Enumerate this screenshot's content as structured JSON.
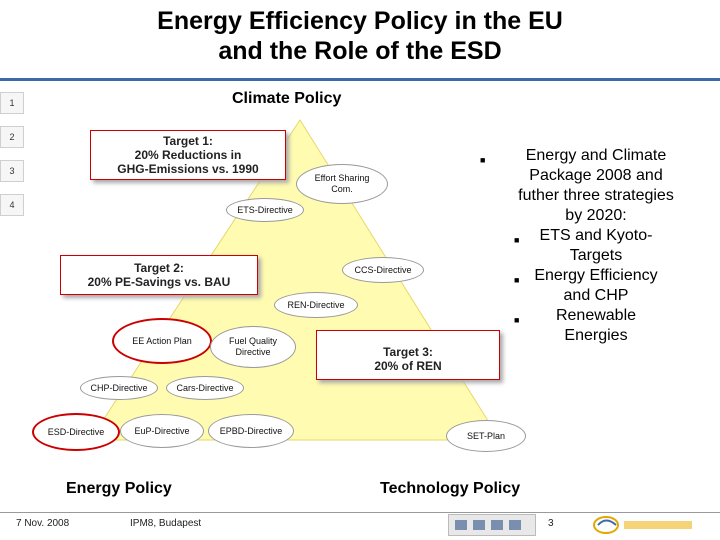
{
  "slide": {
    "title_line1": "Energy Efficiency Policy in the EU",
    "title_line2": "and the Role of the ESD",
    "side_numbers": [
      "1",
      "2",
      "3",
      "4"
    ],
    "climate_policy": "Climate Policy",
    "energy_policy": "Energy Policy",
    "technology_policy": "Technology Policy",
    "targets": {
      "t1": [
        "Target 1:",
        "20% Reductions in",
        "GHG-Emissions vs. 1990"
      ],
      "t2": [
        "Target 2:",
        "20% PE-Savings vs. BAU"
      ],
      "t3": [
        "Target 3:",
        "20% of REN"
      ]
    },
    "ovals": {
      "effort_sharing": [
        "Effort Sharing",
        "Com."
      ],
      "ets": "ETS-Directive",
      "ccs": "CCS-Directive",
      "ren": "REN-Directive",
      "ee_action": "EE Action Plan",
      "fuel_quality": [
        "Fuel Quality",
        "Directive"
      ],
      "chp": "CHP-Directive",
      "cars": "Cars-Directive",
      "esd": "ESD-Directive",
      "eup": "EuP-Directive",
      "epbd": "EPBD-Directive",
      "set_plan": "SET-Plan"
    },
    "bullets": {
      "main": [
        "Energy and Climate",
        "Package 2008 and",
        "futher three strategies",
        "by 2020:"
      ],
      "sub": [
        [
          "ETS and Kyoto-",
          "Targets"
        ],
        [
          "Energy Efficiency",
          "and CHP"
        ],
        [
          "Renewable",
          "Energies"
        ]
      ]
    },
    "footer": {
      "date": "7 Nov. 2008",
      "event": "IPM8, Budapest",
      "page": "3"
    },
    "colors": {
      "pyramid": "#fffbb0",
      "target_border": "#cc0000",
      "title_rule": "#3d69a8"
    }
  }
}
